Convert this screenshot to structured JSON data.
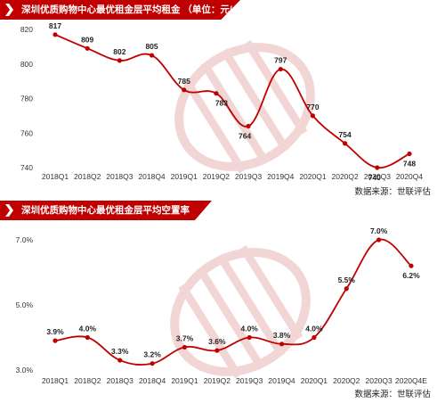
{
  "top": {
    "title": "深圳优质购物中心最优租金层平均租金 （单位：元/㎡*月）",
    "source": "数据来源：世联评估"
  },
  "bottom": {
    "title": "深圳优质购物中心最优租金层平均空置率",
    "source": "数据来源：世联评估"
  },
  "colors": {
    "brand": "#c00000",
    "line": "#c00000",
    "watermark": "#e8b4b4"
  },
  "chart_data": [
    {
      "type": "line",
      "title": "深圳优质购物中心最优租金层平均租金 （单位：元/㎡*月）",
      "categories": [
        "2018Q1",
        "2018Q2",
        "2018Q3",
        "2018Q4",
        "2019Q1",
        "2019Q2",
        "2019Q3",
        "2019Q4",
        "2020Q1",
        "2020Q2",
        "2020Q3",
        "2020Q4"
      ],
      "series": [
        {
          "values": [
            817,
            809,
            802,
            805,
            785,
            783,
            764,
            797,
            770,
            754,
            740,
            748
          ],
          "labels": [
            "817",
            "809",
            "802",
            "805",
            "785",
            "783",
            "764",
            "797",
            "770",
            "754",
            "740",
            "748"
          ]
        }
      ],
      "yticks": [
        "740",
        "760",
        "780",
        "800",
        "820"
      ],
      "ylim": [
        740,
        820
      ],
      "grid": false,
      "legend": "none"
    },
    {
      "type": "line",
      "title": "深圳优质购物中心最优租金层平均空置率",
      "categories": [
        "2018Q1",
        "2018Q2",
        "2018Q3",
        "2018Q4",
        "2019Q1",
        "2019Q2",
        "2019Q3",
        "2019Q4",
        "2020Q1",
        "2020Q2",
        "2020Q3",
        "2020Q4E"
      ],
      "series": [
        {
          "values": [
            3.9,
            4.0,
            3.3,
            3.2,
            3.7,
            3.6,
            4.0,
            3.8,
            4.0,
            5.5,
            7.0,
            6.2
          ],
          "labels": [
            "3.9%",
            "4.0%",
            "3.3%",
            "3.2%",
            "3.7%",
            "3.6%",
            "4.0%",
            "3.8%",
            "4.0%",
            "5.5%",
            "7.0%",
            "6.2%"
          ]
        }
      ],
      "yticks": [
        "3.0%",
        "5.0%",
        "7.0%"
      ],
      "ylim": [
        3.0,
        7.0
      ],
      "grid": false,
      "legend": "none"
    }
  ]
}
